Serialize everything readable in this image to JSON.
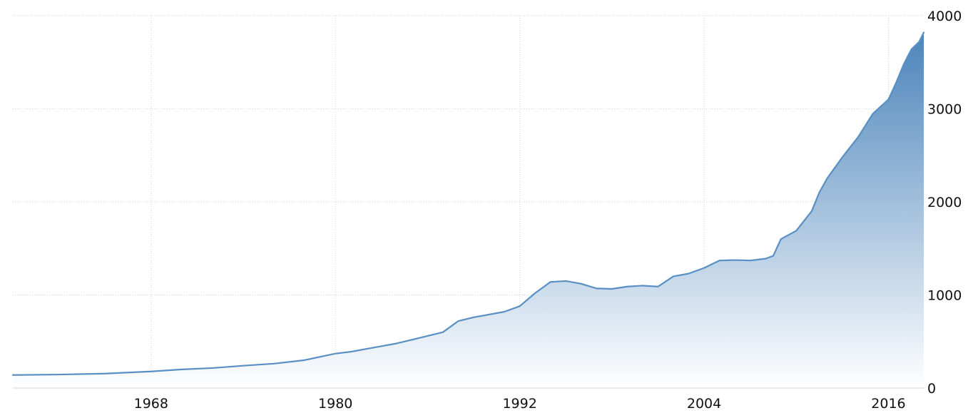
{
  "chart_data": {
    "type": "area",
    "title": "",
    "xlabel": "",
    "ylabel": "",
    "grid": true,
    "y_axis_side": "right",
    "xlim": [
      1959,
      2018.3
    ],
    "ylim": [
      0,
      4000
    ],
    "x_ticks": [
      1968,
      1980,
      1992,
      2004,
      2016
    ],
    "x_tick_labels": [
      "1968",
      "1980",
      "1992",
      "2004",
      "2016"
    ],
    "y_ticks": [
      0,
      1000,
      2000,
      3000,
      4000
    ],
    "y_tick_labels": [
      "0",
      "1000",
      "2000",
      "3000",
      "4000"
    ],
    "colors": {
      "line": "#5a8fc3",
      "fill_top": "#4b84bb",
      "fill_bottom": "#ffffff"
    },
    "series": [
      {
        "points": [
          [
            1959.0,
            140
          ],
          [
            1962.0,
            145
          ],
          [
            1965.0,
            155
          ],
          [
            1968.0,
            178
          ],
          [
            1970.0,
            200
          ],
          [
            1972.0,
            215
          ],
          [
            1974.0,
            240
          ],
          [
            1976.0,
            262
          ],
          [
            1978.0,
            300
          ],
          [
            1980.0,
            370
          ],
          [
            1981.0,
            390
          ],
          [
            1982.0,
            420
          ],
          [
            1983.0,
            450
          ],
          [
            1984.0,
            480
          ],
          [
            1985.0,
            520
          ],
          [
            1986.0,
            560
          ],
          [
            1987.0,
            600
          ],
          [
            1988.0,
            720
          ],
          [
            1989.0,
            760
          ],
          [
            1990.0,
            790
          ],
          [
            1991.0,
            820
          ],
          [
            1992.0,
            880
          ],
          [
            1993.0,
            1020
          ],
          [
            1994.0,
            1140
          ],
          [
            1995.0,
            1150
          ],
          [
            1996.0,
            1120
          ],
          [
            1997.0,
            1070
          ],
          [
            1998.0,
            1065
          ],
          [
            1999.0,
            1090
          ],
          [
            2000.0,
            1100
          ],
          [
            2001.0,
            1090
          ],
          [
            2002.0,
            1200
          ],
          [
            2003.0,
            1230
          ],
          [
            2004.0,
            1290
          ],
          [
            2005.0,
            1370
          ],
          [
            2006.0,
            1375
          ],
          [
            2007.0,
            1370
          ],
          [
            2008.0,
            1390
          ],
          [
            2008.5,
            1420
          ],
          [
            2009.0,
            1600
          ],
          [
            2010.0,
            1690
          ],
          [
            2011.0,
            1900
          ],
          [
            2011.5,
            2100
          ],
          [
            2012.0,
            2250
          ],
          [
            2013.0,
            2480
          ],
          [
            2014.0,
            2690
          ],
          [
            2015.0,
            2950
          ],
          [
            2016.0,
            3100
          ],
          [
            2016.5,
            3280
          ],
          [
            2017.0,
            3480
          ],
          [
            2017.5,
            3640
          ],
          [
            2018.0,
            3720
          ],
          [
            2018.3,
            3820
          ]
        ]
      }
    ]
  }
}
